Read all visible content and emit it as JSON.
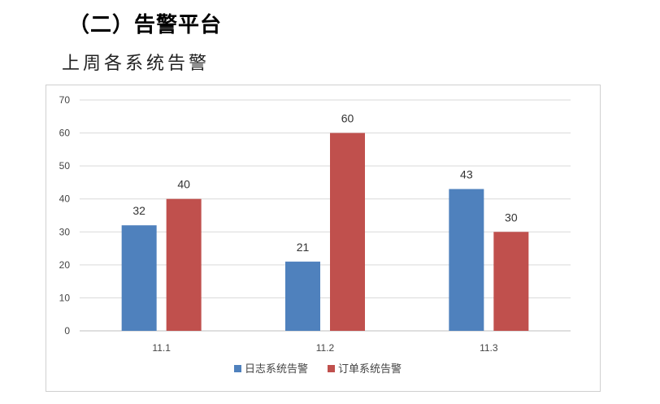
{
  "page": {
    "heading": "（二）告警平台",
    "subheading": "上周各系统告警"
  },
  "colors": {
    "series_1": "#4f81bd",
    "series_2": "#c0504d",
    "grid": "#d9d9d9",
    "axis": "#bfbfbf"
  },
  "chart_data": {
    "type": "bar",
    "categories": [
      "11.1",
      "11.2",
      "11.3"
    ],
    "series": [
      {
        "name": "日志系统告警",
        "values": [
          32,
          21,
          43
        ]
      },
      {
        "name": "订单系统告警",
        "values": [
          40,
          60,
          30
        ]
      }
    ],
    "ylim": [
      0,
      70
    ],
    "yticks": [
      0,
      10,
      20,
      30,
      40,
      50,
      60,
      70
    ],
    "grid": true,
    "legend": "bottom",
    "data_labels": true
  }
}
